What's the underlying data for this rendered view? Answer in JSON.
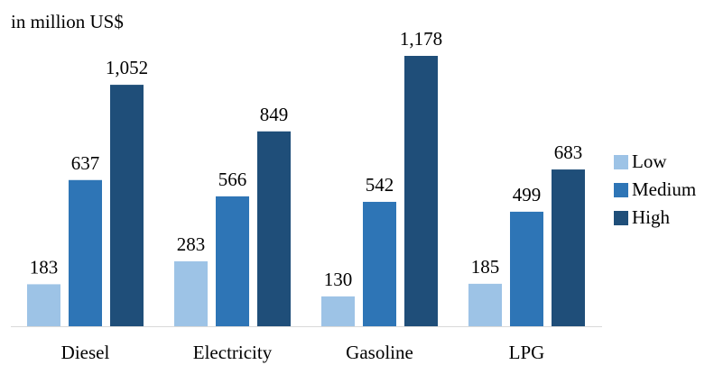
{
  "chart_data": {
    "type": "bar",
    "unit_label": "in million US$",
    "categories": [
      "Diesel",
      "Electricity",
      "Gasoline",
      "LPG"
    ],
    "series": [
      {
        "name": "Low",
        "color": "#9DC3E6",
        "values": [
          183,
          283,
          130,
          185
        ],
        "labels": [
          "183",
          "283",
          "130",
          "185"
        ]
      },
      {
        "name": "Medium",
        "color": "#2E75B6",
        "values": [
          637,
          566,
          542,
          499
        ],
        "labels": [
          "637",
          "566",
          "542",
          "499"
        ]
      },
      {
        "name": "High",
        "color": "#1F4E79",
        "values": [
          1052,
          849,
          1178,
          683
        ],
        "labels": [
          "1,052",
          "849",
          "1,178",
          "683"
        ]
      }
    ],
    "ylim": [
      0,
      1178
    ],
    "grid": false,
    "legend_position": "right"
  }
}
